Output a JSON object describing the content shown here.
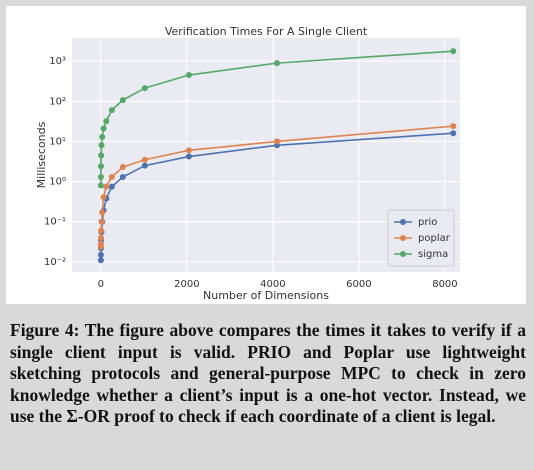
{
  "chart_data": {
    "type": "line",
    "title": "Verification Times For A Single Client",
    "xlabel": "Number of Dimensions",
    "ylabel": "Milliseconds",
    "x": [
      1,
      2,
      4,
      8,
      16,
      32,
      64,
      128,
      256,
      512,
      1024,
      2048,
      4096,
      8192
    ],
    "series": [
      {
        "name": "prio",
        "color": "#4c72b0",
        "values": [
          0.011,
          0.015,
          0.022,
          0.035,
          0.055,
          0.1,
          0.19,
          0.38,
          0.75,
          1.3,
          2.5,
          4.2,
          8,
          16
        ]
      },
      {
        "name": "poplar",
        "color": "#dd8452",
        "values": [
          0.024,
          0.028,
          0.04,
          0.06,
          0.1,
          0.17,
          0.41,
          0.75,
          1.3,
          2.3,
          3.5,
          6,
          10,
          24
        ]
      },
      {
        "name": "sigma",
        "color": "#55a868",
        "values": [
          0.8,
          1.3,
          2.4,
          4.5,
          8,
          13,
          21,
          32,
          60,
          107,
          213,
          450,
          890,
          1770
        ]
      }
    ],
    "xlim": [
      -670,
      8350
    ],
    "xticks": [
      0,
      2000,
      4000,
      6000,
      8000
    ],
    "ylim": [
      0.0056,
      3760
    ],
    "log_y": true,
    "yticks": [
      {
        "value": 0.01,
        "label": "10⁻²"
      },
      {
        "value": 0.1,
        "label": "10⁻¹"
      },
      {
        "value": 1,
        "label": "10⁰"
      },
      {
        "value": 10,
        "label": "10¹"
      },
      {
        "value": 100,
        "label": "10²"
      },
      {
        "value": 1000,
        "label": "10³"
      }
    ],
    "grid": true,
    "legend": "lower right"
  },
  "caption": "Figure 4: The figure above compares the times it takes to verify if a single client input is valid. PRIO and Poplar use lightweight sketching protocols and general-purpose MPC to check in zero knowledge whether a client’s input is a one-hot vector. Instead, we use the Σ-OR proof to check if each coordinate of a client is legal."
}
